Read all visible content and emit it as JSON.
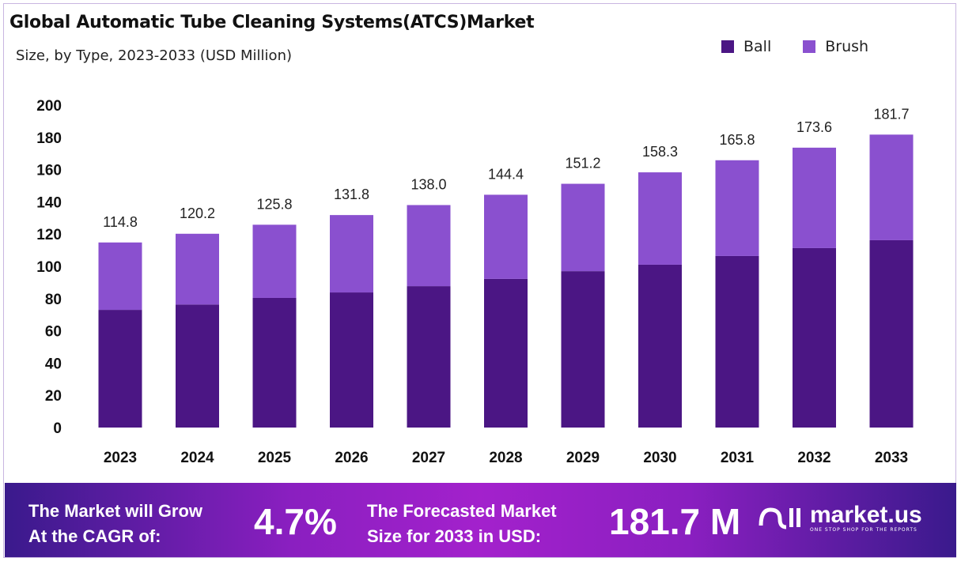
{
  "chart_data": {
    "type": "bar",
    "stacked": true,
    "title": "Global Automatic Tube Cleaning Systems(ATCS)Market",
    "subtitle": "Size, by Type, 2023-2033 (USD Million)",
    "categories": [
      "2023",
      "2024",
      "2025",
      "2026",
      "2027",
      "2028",
      "2029",
      "2030",
      "2031",
      "2032",
      "2033"
    ],
    "series": [
      {
        "name": "Ball",
        "color": "#4b1684",
        "values": [
          73.0,
          76.3,
          80.4,
          83.8,
          87.7,
          92.2,
          97.0,
          101.0,
          106.4,
          111.3,
          116.2
        ]
      },
      {
        "name": "Brush",
        "color": "#8a50cf",
        "values": [
          41.8,
          43.9,
          45.4,
          48.0,
          50.3,
          52.2,
          54.2,
          57.3,
          59.4,
          62.3,
          65.5
        ]
      }
    ],
    "totals": [
      "114.8",
      "120.2",
      "125.8",
      "131.8",
      "138.0",
      "144.4",
      "151.2",
      "158.3",
      "165.8",
      "173.6",
      "181.7"
    ],
    "ylim": [
      0,
      200
    ],
    "yticks": [
      "0",
      "20",
      "40",
      "60",
      "80",
      "100",
      "120",
      "140",
      "160",
      "180",
      "200"
    ],
    "grid": false,
    "legend_position": "top-right"
  },
  "footer": {
    "cagr_text_1": "The Market will Grow",
    "cagr_text_2": "At the CAGR of:",
    "cagr_value": "4.7%",
    "forecast_text_1": "The Forecasted Market",
    "forecast_text_2": "Size for 2033 in USD:",
    "forecast_value": "181.7 M",
    "logo_name": "market.us",
    "logo_tagline": "ONE STOP SHOP FOR THE REPORTS"
  }
}
